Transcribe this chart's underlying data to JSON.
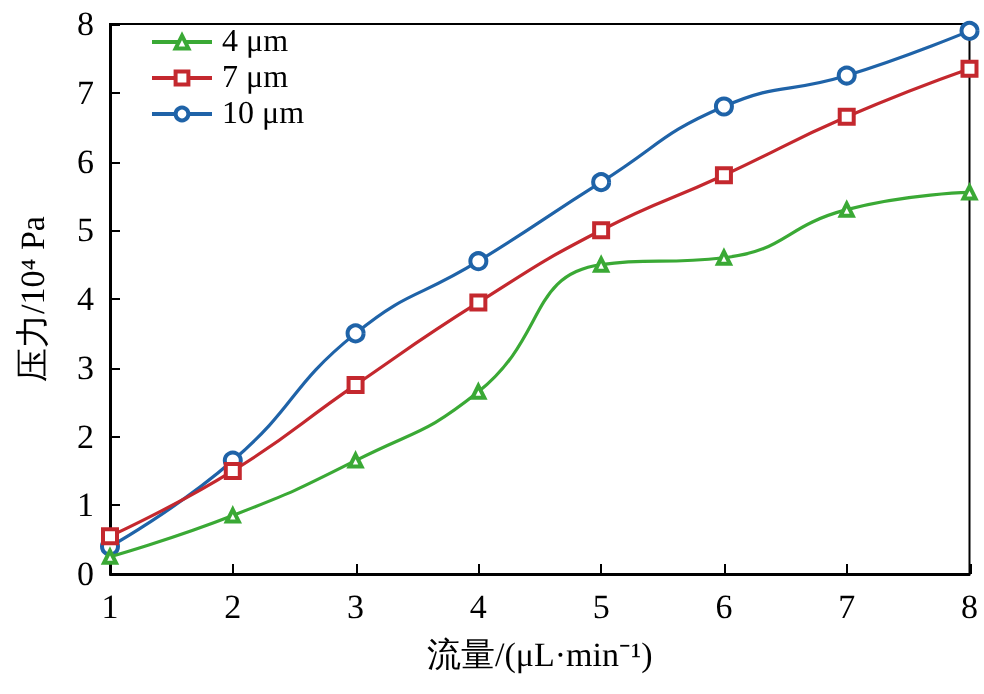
{
  "chart_data": {
    "type": "line",
    "xlabel": "流量/(μL·min⁻¹)",
    "ylabel": "压力/10⁴ Pa",
    "x": [
      1,
      2,
      3,
      4,
      5,
      6,
      7,
      8
    ],
    "series": [
      {
        "name": "4 μm",
        "color": "#3aa935",
        "marker": "triangle",
        "values": [
          0.25,
          0.85,
          1.65,
          2.65,
          4.5,
          4.6,
          5.3,
          5.55
        ]
      },
      {
        "name": "7 μm",
        "color": "#c4282e",
        "marker": "square",
        "values": [
          0.55,
          1.5,
          2.75,
          3.95,
          5.0,
          5.8,
          6.65,
          7.35
        ]
      },
      {
        "name": "10 μm",
        "color": "#1f63a8",
        "marker": "circle",
        "values": [
          0.4,
          1.65,
          3.5,
          4.55,
          5.7,
          6.8,
          7.25,
          7.9
        ]
      }
    ],
    "xlim": [
      1,
      8
    ],
    "xticks": [
      1,
      2,
      3,
      4,
      5,
      6,
      7,
      8
    ],
    "ylim": [
      0,
      8
    ],
    "yticks": [
      0,
      1,
      2,
      3,
      4,
      5,
      6,
      7,
      8
    ],
    "grid": false,
    "legend": "top left",
    "line_style": "solid"
  }
}
